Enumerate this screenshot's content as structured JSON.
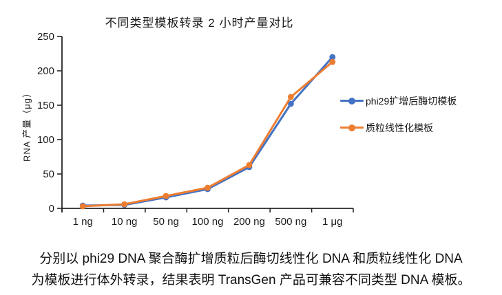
{
  "title": "不同类型模板转录 2 小时产量对比",
  "y_axis": {
    "label": "RNA 产量（μg）"
  },
  "chart_data": {
    "type": "line",
    "title": "不同类型模板转录 2 小时产量对比",
    "xlabel": "",
    "ylabel": "RNA 产量（μg）",
    "categories": [
      "1 ng",
      "10 ng",
      "50 ng",
      "100 ng",
      "200 ng",
      "500 ng",
      "1 μg"
    ],
    "series": [
      {
        "name": "phi29扩增后酶切模板",
        "color": "#4472C4",
        "values": [
          4,
          5,
          16,
          28,
          60,
          152,
          220
        ]
      },
      {
        "name": "质粒线性化模板",
        "color": "#ED7D31",
        "values": [
          3,
          6,
          18,
          30,
          63,
          162,
          213
        ]
      }
    ],
    "ylim": [
      0,
      250
    ],
    "ytick_step": 50,
    "ytick_labels": [
      "0",
      "50",
      "100",
      "150",
      "200",
      "250"
    ],
    "grid": false,
    "legend_position": "right",
    "marker": "circle"
  },
  "legend": {
    "items": [
      {
        "label": "phi29扩增后酶切模板",
        "color": "#4472C4"
      },
      {
        "label": "质粒线性化模板",
        "color": "#ED7D31"
      }
    ]
  },
  "caption": {
    "line1": "分别以 phi29 DNA 聚合酶扩增质粒后酶切线性化 DNA 和质粒线性化 DNA",
    "line2": "为模板进行体外转录，结果表明 TransGen 产品可兼容不同类型 DNA 模板。"
  },
  "colors": {
    "series_blue": "#4472C4",
    "series_orange": "#ED7D31",
    "axis": "#262626",
    "text": "#1a1a1a"
  }
}
